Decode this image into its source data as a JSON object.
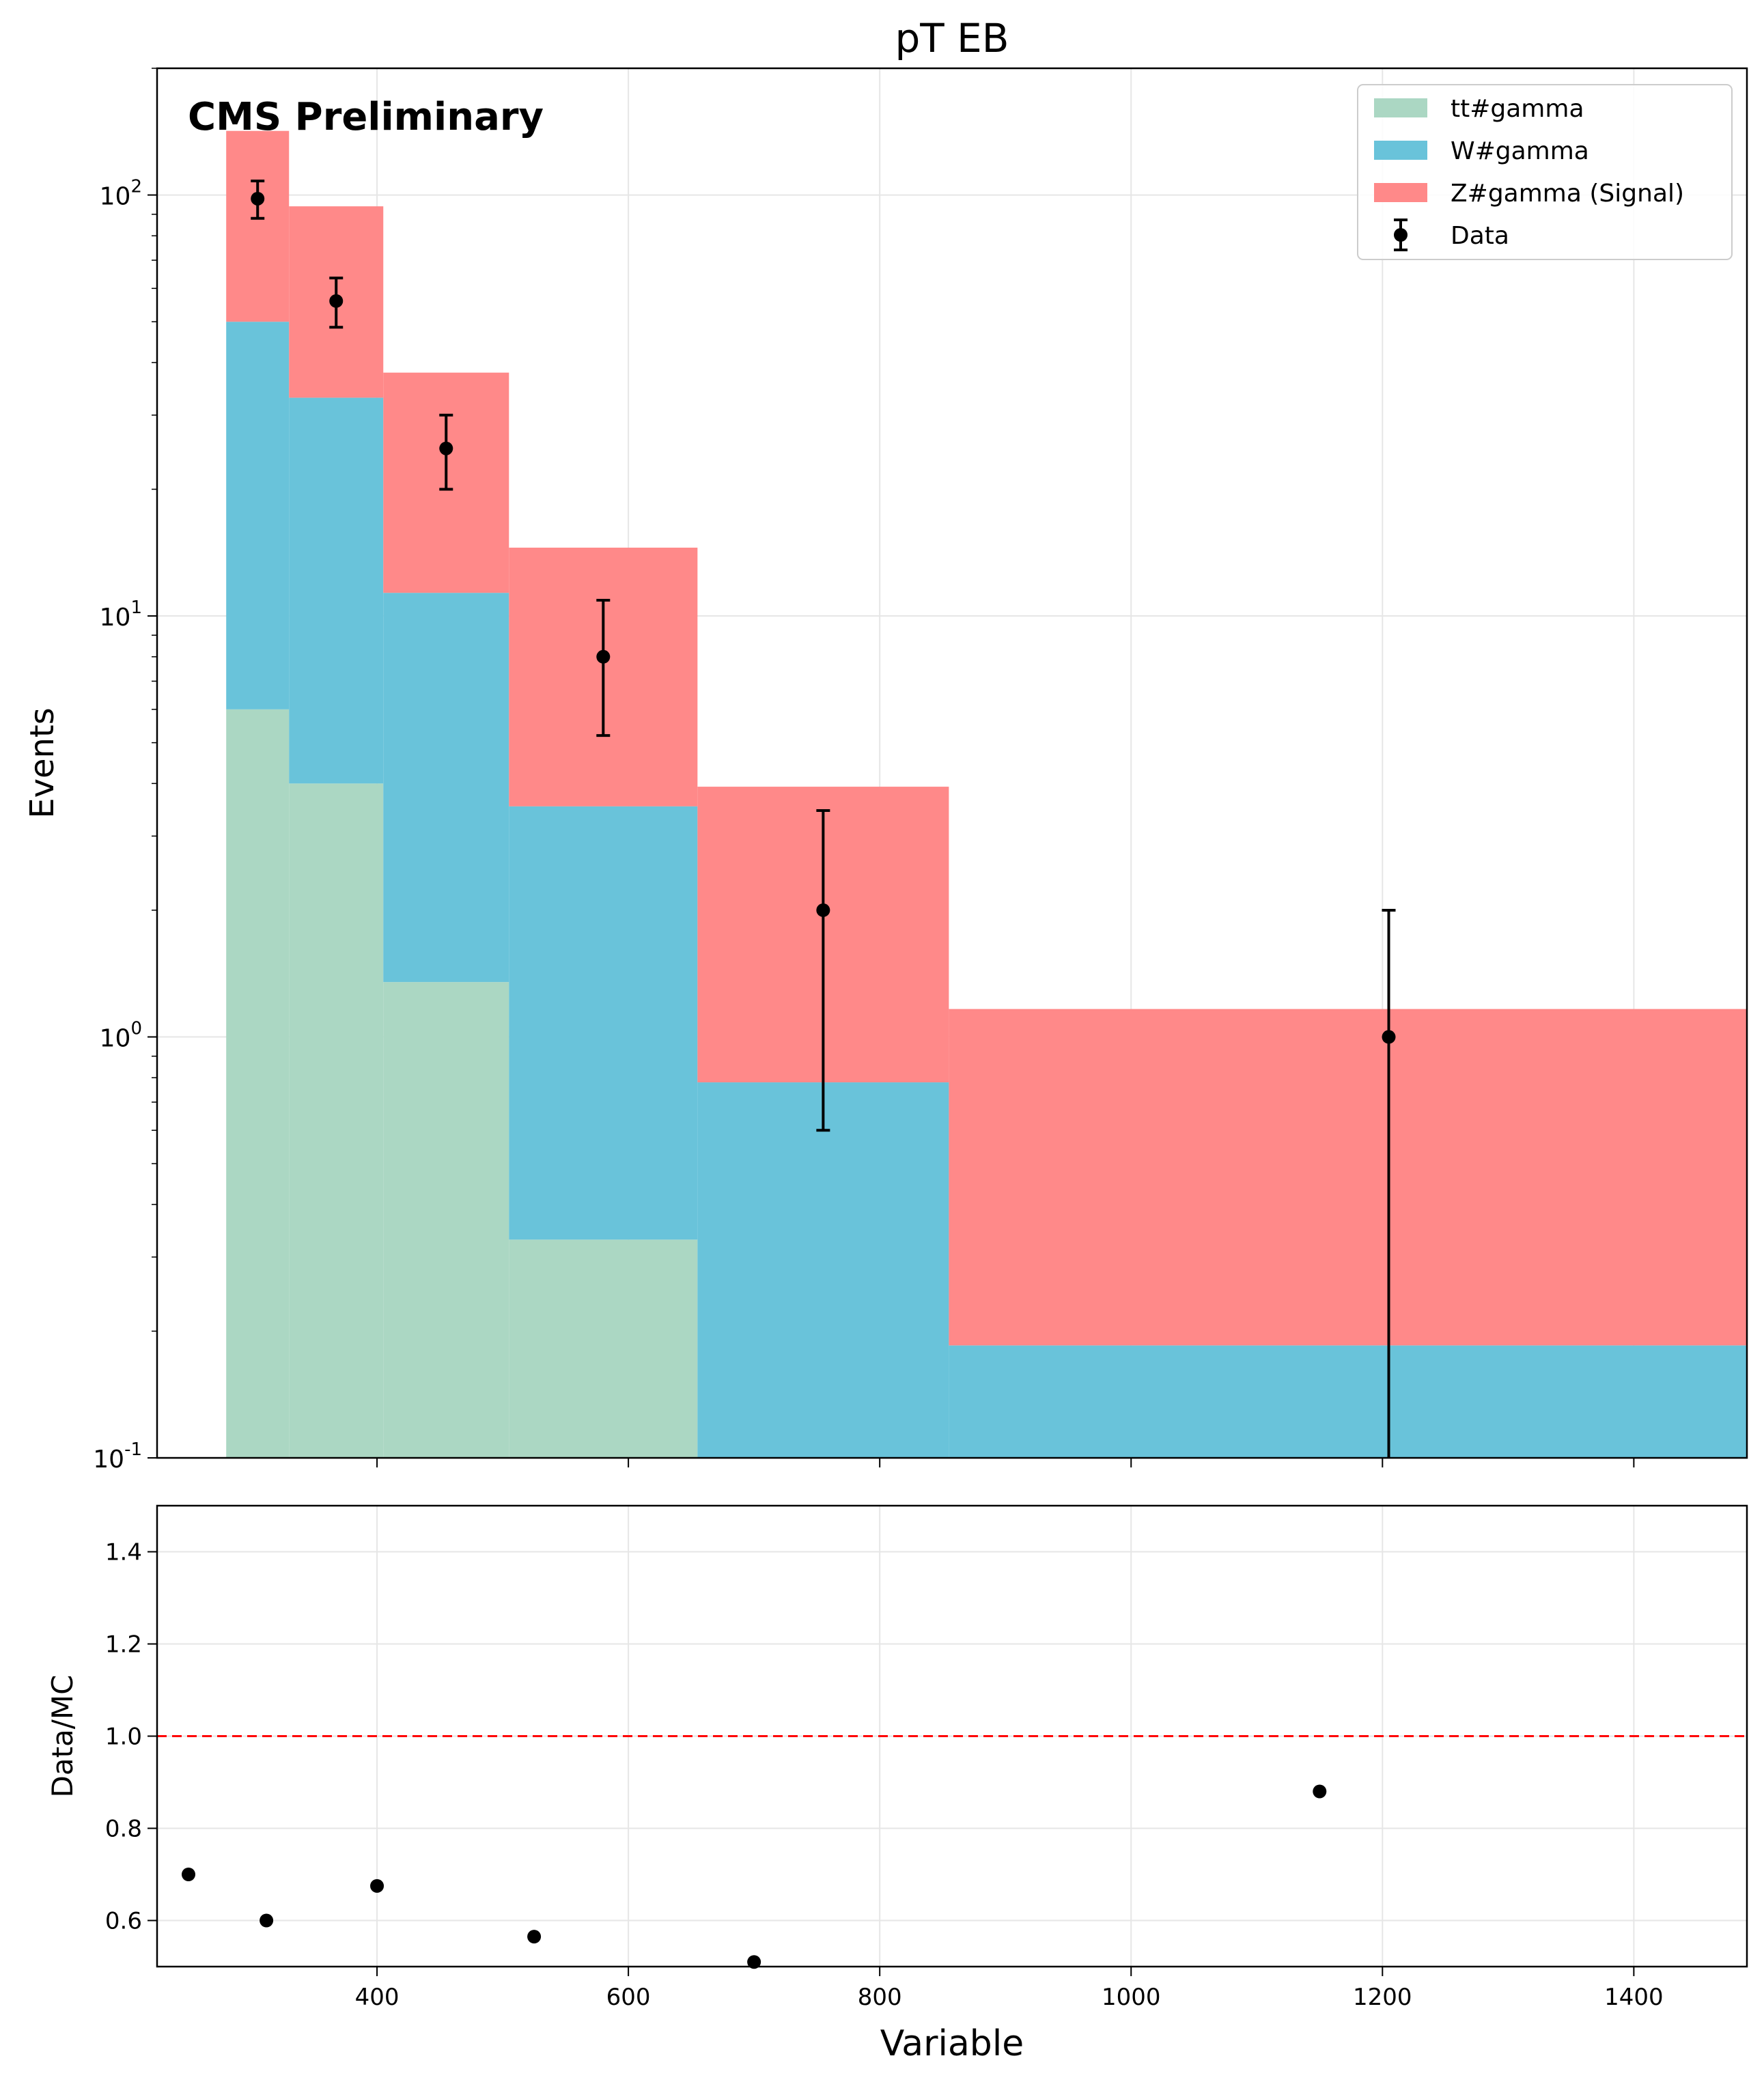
{
  "chart_data": [
    {
      "type": "bar",
      "title": "pT EB",
      "annotation": "CMS Preliminary",
      "ylabel": "Events",
      "yscale": "log",
      "ylim": [
        0.1,
        200
      ],
      "xlim": [
        225,
        1490
      ],
      "grid": true,
      "legend_position": "top-right",
      "bin_edges": [
        280,
        330,
        405,
        505,
        655,
        855,
        1555
      ],
      "stacked": true,
      "series": [
        {
          "name": "tt#gamma",
          "color": "#abd7c3",
          "values": [
            6.0,
            4.0,
            1.35,
            0.33,
            0,
            0
          ]
        },
        {
          "name": "W#gamma",
          "color": "#69c3da",
          "values": [
            44.0,
            29.0,
            10.0,
            3.2,
            0.78,
            0.185
          ]
        },
        {
          "name": "Z#gamma (Signal)",
          "color": "#ff8989",
          "values": [
            92.0,
            61.0,
            26.5,
            11.0,
            3.15,
            0.98
          ]
        }
      ],
      "data_points": {
        "name": "Data",
        "x": [
          305,
          367.5,
          455,
          580,
          755,
          1205
        ],
        "y": [
          98,
          56,
          25,
          8,
          2,
          1
        ],
        "yerr_low": [
          10,
          7.5,
          5,
          2.8,
          1.4,
          1
        ],
        "yerr_high": [
          10,
          7.5,
          5,
          2.9,
          1.45,
          1
        ]
      },
      "yticks": [
        "10^-1",
        "10^0",
        "10^1",
        "10^2"
      ],
      "legend_entries": [
        "tt#gamma",
        "W#gamma",
        "Z#gamma (Signal)",
        "Data"
      ]
    },
    {
      "type": "scatter",
      "xlabel": "Variable",
      "ylabel": "Data/MC",
      "xlim": [
        225,
        1490
      ],
      "ylim": [
        0.5,
        1.5
      ],
      "grid": true,
      "reference_line": {
        "y": 1.0,
        "color": "#ff0000",
        "style": "dashed"
      },
      "x": [
        250,
        312,
        400,
        525,
        700,
        1150
      ],
      "y": [
        0.7,
        0.6,
        0.675,
        0.565,
        0.51,
        0.88
      ],
      "xticks": [
        "400",
        "600",
        "800",
        "1000",
        "1200",
        "1400"
      ],
      "yticks": [
        "0.6",
        "0.8",
        "1.0",
        "1.2",
        "1.4"
      ]
    }
  ]
}
